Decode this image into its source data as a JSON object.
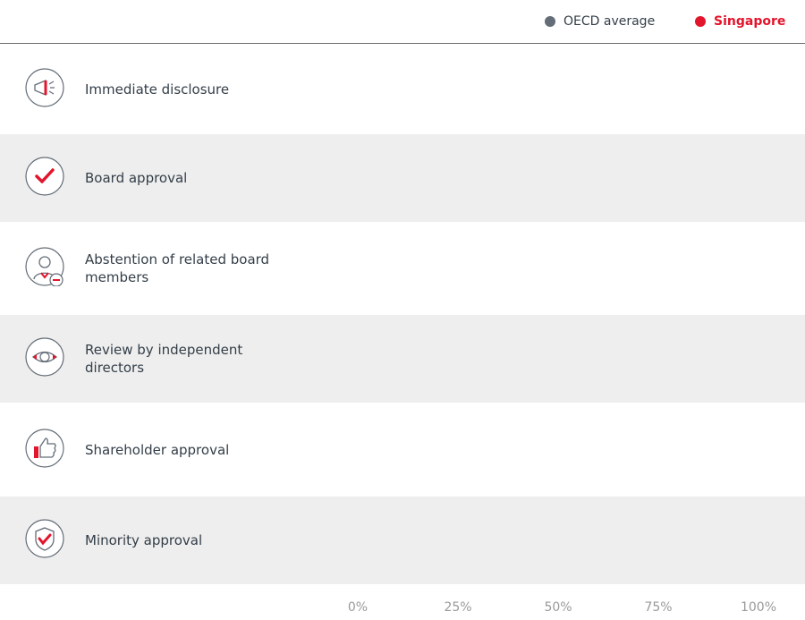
{
  "chart_data": {
    "type": "bar",
    "categories": [
      "Immediate disclosure",
      "Board approval",
      "Abstention of related board members",
      "Review by independent directors",
      "Shareholder approval",
      "Minority approval"
    ],
    "series": [
      {
        "name": "OECD average",
        "color": "#646d77"
      },
      {
        "name": "Singapore",
        "color": "#e3152c"
      }
    ],
    "xlim": [
      0,
      100
    ],
    "xticks": [
      {
        "value": 0,
        "label": "0%"
      },
      {
        "value": 25,
        "label": "25%"
      },
      {
        "value": 50,
        "label": "50%"
      },
      {
        "value": 75,
        "label": "75%"
      },
      {
        "value": 100,
        "label": "100%"
      }
    ]
  }
}
